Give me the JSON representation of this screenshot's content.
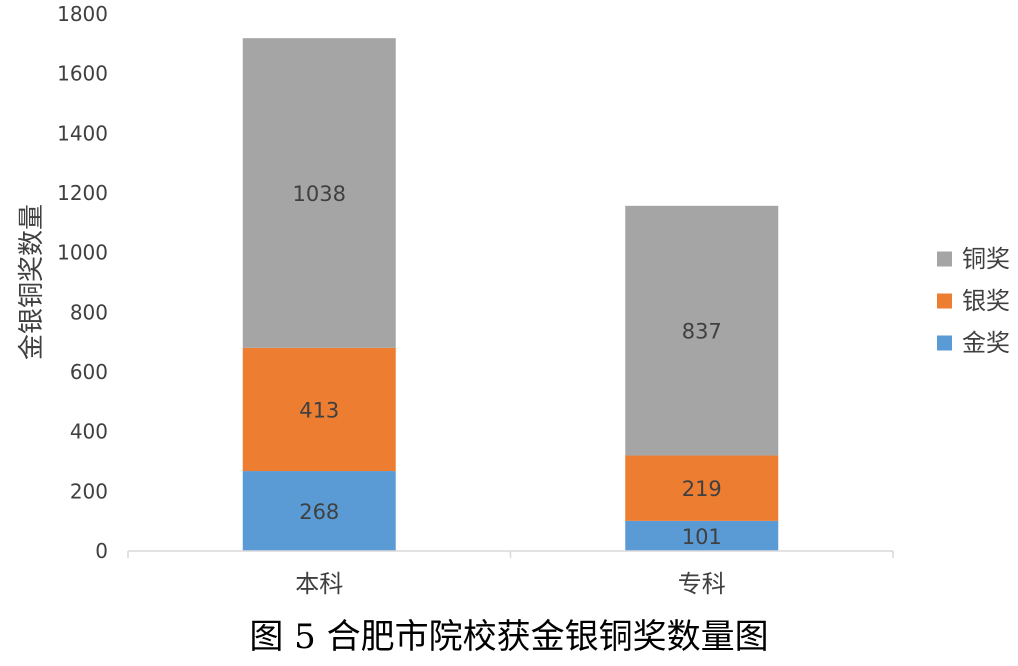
{
  "chart_data": {
    "type": "bar",
    "stacked": true,
    "categories": [
      "本科",
      "专科"
    ],
    "series": [
      {
        "name": "金奖",
        "values": [
          268,
          101
        ],
        "color": "#5b9bd5"
      },
      {
        "name": "银奖",
        "values": [
          413,
          219
        ],
        "color": "#ed7d31"
      },
      {
        "name": "铜奖",
        "values": [
          1038,
          837
        ],
        "color": "#a5a5a5"
      }
    ],
    "ylabel": "金银铜奖数量",
    "ylim": [
      0,
      1800
    ],
    "yticks": [
      0,
      200,
      400,
      600,
      800,
      1000,
      1200,
      1400,
      1600,
      1800
    ],
    "grid": false,
    "legend_position": "right",
    "legend_order": [
      "铜奖",
      "银奖",
      "金奖"
    ],
    "caption": "图 5 合肥市院校获金银铜奖数量图"
  }
}
